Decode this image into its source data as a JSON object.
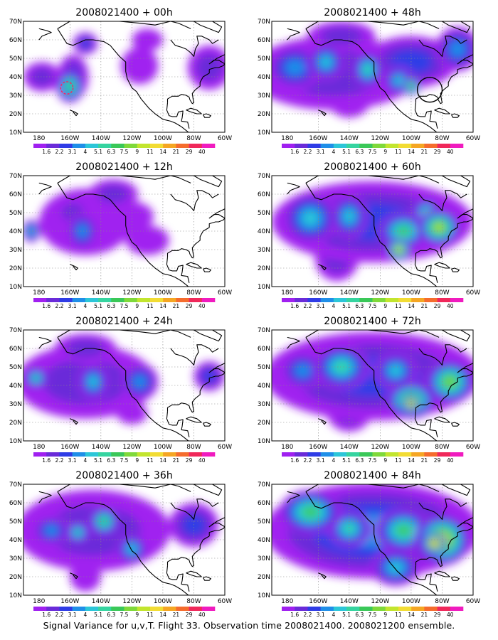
{
  "figure": {
    "caption": "Signal Variance for u,v,T. Flight 33. Observation time 2008021400. 2008021200 ensemble."
  },
  "map": {
    "lat_ticks": [
      "70N",
      "60N",
      "50N",
      "40N",
      "30N",
      "20N",
      "10N"
    ],
    "lat_values": [
      70,
      60,
      50,
      40,
      30,
      20,
      10
    ],
    "lon_ticks": [
      "180",
      "160W",
      "140W",
      "120W",
      "100W",
      "80W",
      "60W"
    ],
    "lon_values": [
      -180,
      -160,
      -140,
      -120,
      -100,
      -80,
      -60
    ],
    "lon_range": [
      -190,
      -60
    ],
    "lat_range": [
      10,
      70
    ]
  },
  "colorbar": {
    "labels": [
      "1.6",
      "2.2",
      "3.1",
      "4",
      "5.1",
      "6.3",
      "7.5",
      "9",
      "11",
      "14",
      "21",
      "29",
      "40"
    ],
    "colors": [
      "#ffffff",
      "#a020f0",
      "#6a2bd9",
      "#2f3ce6",
      "#1f8fe8",
      "#2cc6d8",
      "#35d4a0",
      "#3ac858",
      "#7fd93a",
      "#c2e52e",
      "#f2dc33",
      "#f5a623",
      "#f56c2d",
      "#f0285a",
      "#f01bbf"
    ]
  },
  "panels": [
    {
      "id": "p00",
      "title": "2008021400 + 00h",
      "blobs": [
        {
          "lon": -160,
          "lat": 35,
          "rx": 9,
          "ry": 9,
          "level": 7
        },
        {
          "lon": -158,
          "lat": 40,
          "rx": 10,
          "ry": 12,
          "level": 3
        },
        {
          "lon": -150,
          "lat": 58,
          "rx": 8,
          "ry": 6,
          "level": 3
        },
        {
          "lon": -178,
          "lat": 40,
          "rx": 12,
          "ry": 8,
          "level": 2
        },
        {
          "lon": -115,
          "lat": 46,
          "rx": 12,
          "ry": 10,
          "level": 1
        },
        {
          "lon": -70,
          "lat": 45,
          "rx": 14,
          "ry": 12,
          "level": 2
        },
        {
          "lon": -110,
          "lat": 60,
          "rx": 10,
          "ry": 6,
          "level": 1
        }
      ],
      "circles": [
        {
          "lon": -162,
          "lat": 34,
          "r": 4,
          "color": "#ff2060",
          "dashed": true
        }
      ]
    },
    {
      "id": "p48",
      "title": "2008021400 + 48h",
      "blobs": [
        {
          "lon": -150,
          "lat": 42,
          "rx": 55,
          "ry": 20,
          "level": 2
        },
        {
          "lon": -175,
          "lat": 45,
          "rx": 18,
          "ry": 12,
          "level": 4
        },
        {
          "lon": -155,
          "lat": 48,
          "rx": 12,
          "ry": 10,
          "level": 5
        },
        {
          "lon": -128,
          "lat": 44,
          "rx": 10,
          "ry": 10,
          "level": 6
        },
        {
          "lon": -100,
          "lat": 48,
          "rx": 30,
          "ry": 14,
          "level": 3
        },
        {
          "lon": -108,
          "lat": 38,
          "rx": 10,
          "ry": 8,
          "level": 5
        },
        {
          "lon": -100,
          "lat": 35,
          "rx": 6,
          "ry": 5,
          "level": 8
        },
        {
          "lon": -70,
          "lat": 55,
          "rx": 14,
          "ry": 12,
          "level": 4
        },
        {
          "lon": -145,
          "lat": 62,
          "rx": 22,
          "ry": 8,
          "level": 2
        },
        {
          "lon": -140,
          "lat": 28,
          "rx": 14,
          "ry": 10,
          "level": 1
        }
      ],
      "circles": [
        {
          "lon": -88,
          "lat": 33,
          "r": 8,
          "color": "#000000",
          "dashed": false
        }
      ]
    },
    {
      "id": "p12",
      "title": "2008021400 + 12h",
      "blobs": [
        {
          "lon": -150,
          "lat": 45,
          "rx": 30,
          "ry": 18,
          "level": 1
        },
        {
          "lon": -185,
          "lat": 40,
          "rx": 6,
          "ry": 6,
          "level": 5
        },
        {
          "lon": -152,
          "lat": 40,
          "rx": 10,
          "ry": 10,
          "level": 4
        },
        {
          "lon": -158,
          "lat": 50,
          "rx": 12,
          "ry": 8,
          "level": 2
        },
        {
          "lon": -132,
          "lat": 60,
          "rx": 16,
          "ry": 8,
          "level": 2
        },
        {
          "lon": -120,
          "lat": 48,
          "rx": 14,
          "ry": 8,
          "level": 1
        },
        {
          "lon": -110,
          "lat": 35,
          "rx": 14,
          "ry": 8,
          "level": 1
        }
      ],
      "circles": []
    },
    {
      "id": "p60",
      "title": "2008021400 + 60h",
      "blobs": [
        {
          "lon": -125,
          "lat": 45,
          "rx": 65,
          "ry": 22,
          "level": 3
        },
        {
          "lon": -165,
          "lat": 47,
          "rx": 18,
          "ry": 14,
          "level": 5
        },
        {
          "lon": -140,
          "lat": 48,
          "rx": 12,
          "ry": 12,
          "level": 5
        },
        {
          "lon": -105,
          "lat": 40,
          "rx": 16,
          "ry": 10,
          "level": 7
        },
        {
          "lon": -108,
          "lat": 30,
          "rx": 8,
          "ry": 6,
          "level": 10
        },
        {
          "lon": -82,
          "lat": 42,
          "rx": 14,
          "ry": 10,
          "level": 9
        },
        {
          "lon": -90,
          "lat": 50,
          "rx": 10,
          "ry": 8,
          "level": 6
        },
        {
          "lon": -148,
          "lat": 25,
          "rx": 14,
          "ry": 12,
          "level": 2
        }
      ],
      "circles": []
    },
    {
      "id": "p24",
      "title": "2008021400 + 24h",
      "blobs": [
        {
          "lon": -150,
          "lat": 42,
          "rx": 45,
          "ry": 20,
          "level": 2
        },
        {
          "lon": -182,
          "lat": 44,
          "rx": 8,
          "ry": 6,
          "level": 6
        },
        {
          "lon": -145,
          "lat": 42,
          "rx": 10,
          "ry": 10,
          "level": 5
        },
        {
          "lon": -115,
          "lat": 42,
          "rx": 12,
          "ry": 10,
          "level": 4
        },
        {
          "lon": -70,
          "lat": 45,
          "rx": 10,
          "ry": 8,
          "level": 3
        },
        {
          "lon": -150,
          "lat": 60,
          "rx": 20,
          "ry": 8,
          "level": 2
        },
        {
          "lon": -120,
          "lat": 25,
          "rx": 10,
          "ry": 6,
          "level": 1
        }
      ],
      "circles": []
    },
    {
      "id": "p72",
      "title": "2008021400 + 72h",
      "blobs": [
        {
          "lon": -125,
          "lat": 45,
          "rx": 70,
          "ry": 24,
          "level": 3
        },
        {
          "lon": -145,
          "lat": 50,
          "rx": 18,
          "ry": 12,
          "level": 6
        },
        {
          "lon": -170,
          "lat": 48,
          "rx": 14,
          "ry": 10,
          "level": 4
        },
        {
          "lon": -110,
          "lat": 48,
          "rx": 14,
          "ry": 10,
          "level": 5
        },
        {
          "lon": -100,
          "lat": 32,
          "rx": 16,
          "ry": 10,
          "level": 9
        },
        {
          "lon": -100,
          "lat": 30,
          "rx": 6,
          "ry": 5,
          "level": 12
        },
        {
          "lon": -75,
          "lat": 42,
          "rx": 16,
          "ry": 12,
          "level": 8
        },
        {
          "lon": -140,
          "lat": 25,
          "rx": 14,
          "ry": 10,
          "level": 2
        }
      ],
      "circles": []
    },
    {
      "id": "p36",
      "title": "2008021400 + 36h",
      "blobs": [
        {
          "lon": -145,
          "lat": 45,
          "rx": 50,
          "ry": 22,
          "level": 2
        },
        {
          "lon": -172,
          "lat": 45,
          "rx": 12,
          "ry": 8,
          "level": 4
        },
        {
          "lon": -155,
          "lat": 44,
          "rx": 8,
          "ry": 6,
          "level": 6
        },
        {
          "lon": -138,
          "lat": 50,
          "rx": 10,
          "ry": 8,
          "level": 7
        },
        {
          "lon": -120,
          "lat": 35,
          "rx": 10,
          "ry": 8,
          "level": 5
        },
        {
          "lon": -80,
          "lat": 48,
          "rx": 16,
          "ry": 12,
          "level": 3
        },
        {
          "lon": -150,
          "lat": 20,
          "rx": 10,
          "ry": 8,
          "level": 1
        }
      ],
      "circles": []
    },
    {
      "id": "p84",
      "title": "2008021400 + 84h",
      "blobs": [
        {
          "lon": -125,
          "lat": 45,
          "rx": 70,
          "ry": 26,
          "level": 4
        },
        {
          "lon": -165,
          "lat": 55,
          "rx": 20,
          "ry": 12,
          "level": 7
        },
        {
          "lon": -140,
          "lat": 46,
          "rx": 14,
          "ry": 10,
          "level": 6
        },
        {
          "lon": -105,
          "lat": 45,
          "rx": 18,
          "ry": 12,
          "level": 7
        },
        {
          "lon": -80,
          "lat": 40,
          "rx": 18,
          "ry": 14,
          "level": 10
        },
        {
          "lon": -85,
          "lat": 38,
          "rx": 8,
          "ry": 6,
          "level": 12
        },
        {
          "lon": -110,
          "lat": 25,
          "rx": 16,
          "ry": 10,
          "level": 5
        }
      ],
      "circles": []
    }
  ]
}
